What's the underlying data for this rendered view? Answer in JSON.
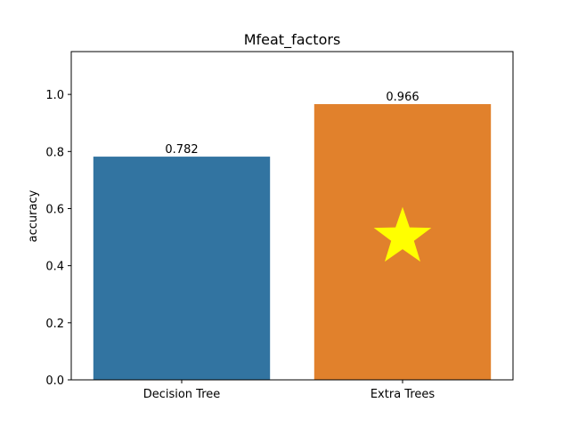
{
  "chart_data": {
    "type": "bar",
    "title": "Mfeat_factors",
    "xlabel": "",
    "ylabel": "accuracy",
    "categories": [
      "Decision Tree",
      "Extra Trees"
    ],
    "values": [
      0.782,
      0.966
    ],
    "data_labels": [
      "0.782",
      "0.966"
    ],
    "ylim": [
      0,
      1.15
    ],
    "yticks": [
      0.0,
      0.2,
      0.4,
      0.6,
      0.8,
      1.0
    ],
    "ytick_labels": [
      "0.0",
      "0.2",
      "0.4",
      "0.6",
      "0.8",
      "1.0"
    ],
    "colors": [
      "#3274a1",
      "#e1812c"
    ],
    "marker": {
      "category": "Extra Trees",
      "y": 0.5,
      "shape": "star",
      "color": "#ffff00"
    },
    "grid": false,
    "legend": "none"
  }
}
